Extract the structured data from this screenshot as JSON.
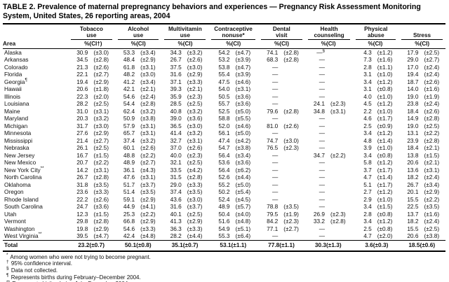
{
  "title": "TABLE 2. Prevalence of maternal prepregnancy behaviors and experiences — Pregnancy Risk Assessment Monitoring System, United States, 26 reporting areas, 2004",
  "table": {
    "area_header": "Area",
    "groups": [
      {
        "label": "Tobacco\nuse",
        "pct": "%",
        "ci": "(CI†)"
      },
      {
        "label": "Alcohol\nuse",
        "pct": "%",
        "ci": "(CI)"
      },
      {
        "label": "Multivitamin\nuse",
        "pct": "%",
        "ci": "(CI)"
      },
      {
        "label": "Contraceptive\nnonuse*",
        "pct": "%",
        "ci": "(CI)"
      },
      {
        "label": "Dental\nvisit",
        "pct": "%",
        "ci": "(CI)"
      },
      {
        "label": "Health\ncounseling",
        "pct": "%",
        "ci": "(CI)"
      },
      {
        "label": "Physical\nabuse",
        "pct": "%",
        "ci": "(CI)"
      },
      {
        "label": "Stress",
        "pct": "%",
        "ci": "(CI)"
      }
    ],
    "rows": [
      {
        "area": "Alaska",
        "marker": "",
        "cells": [
          "30.9",
          "(±3.0)",
          "53.3",
          "(±3.4)",
          "34.3",
          "(±3.2)",
          "54.2",
          "(±4.7)",
          "74.1",
          "(±2.8)",
          "—§",
          "",
          "4.3",
          "(±1.2)",
          "17.9",
          "(±2.5)"
        ]
      },
      {
        "area": "Arkansas",
        "marker": "",
        "cells": [
          "34.5",
          "(±2.8)",
          "48.4",
          "(±2.9)",
          "26.7",
          "(±2.6)",
          "53.2",
          "(±3.9)",
          "68.3",
          "(±2.8)",
          "—",
          "",
          "7.3",
          "(±1.6)",
          "29.0",
          "(±2.7)"
        ]
      },
      {
        "area": "Colorado",
        "marker": "",
        "cells": [
          "21.3",
          "(±2.6)",
          "61.8",
          "(±3.1)",
          "37.5",
          "(±3.0)",
          "53.8",
          "(±4.7)",
          "—",
          "",
          "—",
          "",
          "2.8",
          "(±1.1)",
          "17.0",
          "(±2.4)"
        ]
      },
      {
        "area": "Florida",
        "marker": "",
        "cells": [
          "22.1",
          "(±2.7)",
          "48.2",
          "(±3.0)",
          "31.6",
          "(±2.9)",
          "55.4",
          "(±3.9)",
          "—",
          "",
          "—",
          "",
          "3.1",
          "(±1.0)",
          "19.4",
          "(±2.4)"
        ]
      },
      {
        "area": "Georgia",
        "marker": "¶",
        "cells": [
          "19.4",
          "(±2.9)",
          "41.2",
          "(±3.4)",
          "37.1",
          "(±3.3)",
          "47.5",
          "(±4.6)",
          "—",
          "",
          "—",
          "",
          "3.4",
          "(±1.2)",
          "18.7",
          "(±2.6)"
        ]
      },
      {
        "area": "Hawaii",
        "marker": "",
        "cells": [
          "20.6",
          "(±1.8)",
          "42.1",
          "(±2.1)",
          "39.3",
          "(±2.1)",
          "54.0",
          "(±3.1)",
          "—",
          "",
          "—",
          "",
          "3.1",
          "(±0.8)",
          "14.0",
          "(±1.6)"
        ]
      },
      {
        "area": "Illinois",
        "marker": "",
        "cells": [
          "22.3",
          "(±2.0)",
          "54.6",
          "(±2.4)",
          "35.9",
          "(±2.3)",
          "50.5",
          "(±3.6)",
          "—",
          "",
          "—",
          "",
          "4.0",
          "(±1.0)",
          "19.0",
          "(±1.9)"
        ]
      },
      {
        "area": "Louisiana",
        "marker": "",
        "cells": [
          "28.2",
          "(±2.5)",
          "54.4",
          "(±2.8)",
          "28.5",
          "(±2.5)",
          "55.7",
          "(±3.6)",
          "—",
          "",
          "24.1",
          "(±2.3)",
          "4.5",
          "(±1.2)",
          "23.8",
          "(±2.4)"
        ]
      },
      {
        "area": "Maine",
        "marker": "",
        "cells": [
          "31.0",
          "(±3.1)",
          "62.4",
          "(±3.2)",
          "40.8",
          "(±3.2)",
          "52.5",
          "(±5.0)",
          "79.6",
          "(±2.8)",
          "34.8",
          "(±3.1)",
          "2.2",
          "(±1.0)",
          "18.4",
          "(±2.6)"
        ]
      },
      {
        "area": "Maryland",
        "marker": "",
        "cells": [
          "20.3",
          "(±3.2)",
          "50.9",
          "(±3.8)",
          "39.0",
          "(±3.6)",
          "58.8",
          "(±5.5)",
          "—",
          "",
          "—",
          "",
          "4.6",
          "(±1.7)",
          "14.9",
          "(±2.8)"
        ]
      },
      {
        "area": "Michigan",
        "marker": "",
        "cells": [
          "31.7",
          "(±3.0)",
          "57.9",
          "(±3.1)",
          "36.5",
          "(±3.0)",
          "52.0",
          "(±4.6)",
          "81.0",
          "(±2.6)",
          "—",
          "",
          "2.5",
          "(±0.9)",
          "19.0",
          "(±2.5)"
        ]
      },
      {
        "area": "Minnesota",
        "marker": "",
        "cells": [
          "27.6",
          "(±2.9)",
          "65.7",
          "(±3.1)",
          "41.4",
          "(±3.2)",
          "56.1",
          "(±5.0)",
          "—",
          "",
          "—",
          "",
          "3.4",
          "(±1.2)",
          "13.1",
          "(±2.2)"
        ]
      },
      {
        "area": "Mississippi",
        "marker": "",
        "cells": [
          "21.4",
          "(±2.7)",
          "37.4",
          "(±3.2)",
          "32.7",
          "(±3.1)",
          "47.4",
          "(±4.2)",
          "74.7",
          "(±3.0)",
          "—",
          "",
          "4.8",
          "(±1.4)",
          "23.9",
          "(±2.8)"
        ]
      },
      {
        "area": "Nebraska",
        "marker": "",
        "cells": [
          "26.1",
          "(±2.5)",
          "60.1",
          "(±2.6)",
          "37.0",
          "(±2.6)",
          "54.7",
          "(±3.8)",
          "76.5",
          "(±2.3)",
          "—",
          "",
          "3.9",
          "(±1.0)",
          "18.4",
          "(±2.1)"
        ]
      },
      {
        "area": "New Jersey",
        "marker": "",
        "cells": [
          "16.7",
          "(±1.5)",
          "48.8",
          "(±2.2)",
          "40.0",
          "(±2.3)",
          "56.4",
          "(±3.4)",
          "—",
          "",
          "34.7",
          "(±2.2)",
          "3.4",
          "(±0.8)",
          "13.8",
          "(±1.5)"
        ]
      },
      {
        "area": "New Mexico",
        "marker": "",
        "cells": [
          "20.7",
          "(±2.2)",
          "48.9",
          "(±2.7)",
          "32.1",
          "(±2.5)",
          "53.6",
          "(±3.6)",
          "—",
          "",
          "—",
          "",
          "5.8",
          "(±1.2)",
          "20.6",
          "(±2.1)"
        ]
      },
      {
        "area": "New York City",
        "marker": "**",
        "cells": [
          "14.2",
          "(±3.1)",
          "36.1",
          "(±4.3)",
          "33.5",
          "(±4.2)",
          "56.4",
          "(±6.2)",
          "—",
          "",
          "—",
          "",
          "3.7",
          "(±1.7)",
          "13.6",
          "(±3.1)"
        ]
      },
      {
        "area": "North Carolina",
        "marker": "",
        "cells": [
          "26.7",
          "(±2.8)",
          "47.6",
          "(±3.1)",
          "31.5",
          "(±2.8)",
          "52.6",
          "(±4.4)",
          "—",
          "",
          "—",
          "",
          "4.7",
          "(±1.4)",
          "18.2",
          "(±2.4)"
        ]
      },
      {
        "area": "Oklahoma",
        "marker": "",
        "cells": [
          "31.8",
          "(±3.5)",
          "51.7",
          "(±3.7)",
          "29.0",
          "(±3.3)",
          "55.2",
          "(±5.0)",
          "—",
          "",
          "—",
          "",
          "5.1",
          "(±1.7)",
          "26.7",
          "(±3.4)"
        ]
      },
      {
        "area": "Oregon",
        "marker": "",
        "cells": [
          "23.6",
          "(±3.3)",
          "51.4",
          "(±3.5)",
          "37.4",
          "(±3.5)",
          "50.2",
          "(±5.4)",
          "—",
          "",
          "—",
          "",
          "2.7",
          "(±1.2)",
          "20.1",
          "(±2.9)"
        ]
      },
      {
        "area": "Rhode Island",
        "marker": "",
        "cells": [
          "22.2",
          "(±2.6)",
          "59.1",
          "(±2.9)",
          "43.6",
          "(±3.0)",
          "52.4",
          "(±4.5)",
          "—",
          "",
          "—",
          "",
          "2.9",
          "(±1.0)",
          "15.5",
          "(±2.2)"
        ]
      },
      {
        "area": "South Carolina",
        "marker": "",
        "cells": [
          "24.7",
          "(±3.6)",
          "44.9",
          "(±4.1)",
          "31.6",
          "(±3.7)",
          "48.9",
          "(±5.7)",
          "78.8",
          "(±3.5)",
          "—",
          "",
          "3.4",
          "(±1.5)",
          "22.5",
          "(±3.5)"
        ]
      },
      {
        "area": "Utah",
        "marker": "",
        "cells": [
          "12.3",
          "(±1.5)",
          "25.3",
          "(±2.2)",
          "40.1",
          "(±2.5)",
          "50.4",
          "(±4.0)",
          "79.5",
          "(±1.9)",
          "26.9",
          "(±2.3)",
          "2.8",
          "(±0.8)",
          "13.7",
          "(±1.6)"
        ]
      },
      {
        "area": "Vermont",
        "marker": "",
        "cells": [
          "29.8",
          "(±2.8)",
          "66.8",
          "(±2.9)",
          "41.3",
          "(±2.9)",
          "51.6",
          "(±4.8)",
          "84.2",
          "(±2.3)",
          "33.2",
          "(±2.8)",
          "3.4",
          "(±1.2)",
          "18.2",
          "(±2.4)"
        ]
      },
      {
        "area": "Washington",
        "marker": "",
        "cells": [
          "19.8",
          "(±2.9)",
          "54.6",
          "(±3.3)",
          "36.3",
          "(±3.3)",
          "54.9",
          "(±5.1)",
          "77.1",
          "(±2.7)",
          "—",
          "",
          "2.5",
          "(±0.8)",
          "15.5",
          "(±2.5)"
        ]
      },
      {
        "area": "West Virginia",
        "marker": "**",
        "cells": [
          "39.5",
          "(±4.7)",
          "42.4",
          "(±4.8)",
          "28.2",
          "(±4.4)",
          "55.3",
          "(±6.4)",
          "—",
          "",
          "—",
          "",
          "4.7",
          "(±2.0)",
          "20.6",
          "(±3.8)"
        ]
      },
      {
        "area": "Total",
        "marker": "",
        "total": true,
        "cells": [
          "23.2",
          "(±0.7)",
          "50.1",
          "(±0.8)",
          "35.1",
          "(±0.7)",
          "53.1",
          "(±1.1)",
          "77.8",
          "(±1.1)",
          "30.3",
          "(±1.3)",
          "3.6",
          "(±0.3)",
          "18.5",
          "(±0.6)"
        ]
      }
    ]
  },
  "footnotes": [
    {
      "marker": "*",
      "text": "Among women who were not trying to become pregnant."
    },
    {
      "marker": "†",
      "text": "95% confidence interval."
    },
    {
      "marker": "§",
      "text": "Data not collected."
    },
    {
      "marker": "¶",
      "text": "Represents births during February–December 2004."
    },
    {
      "marker": "**",
      "text": "Represents births during July–December 2004."
    }
  ]
}
